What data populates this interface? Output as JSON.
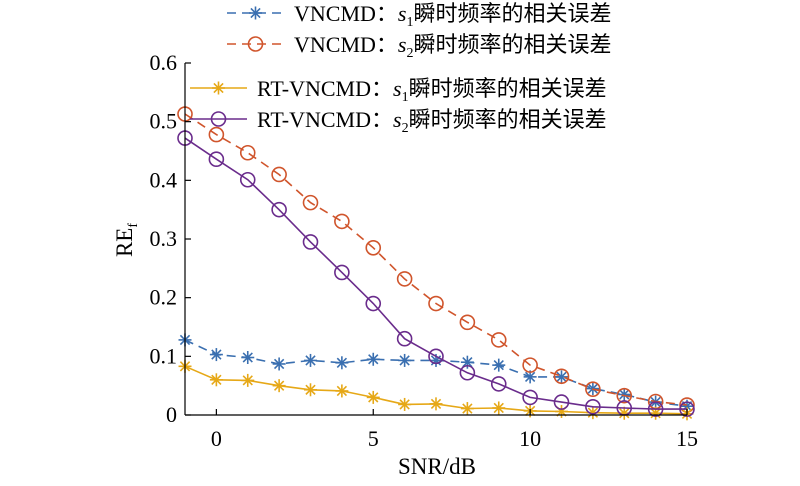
{
  "chart_data": {
    "type": "line",
    "title": "",
    "xlabel": "SNR/dB",
    "ylabel_main": "RE",
    "ylabel_sub": "f",
    "xlim": [
      -1,
      15
    ],
    "ylim": [
      0,
      0.6
    ],
    "xticks": [
      0,
      5,
      10,
      15
    ],
    "yticks": [
      0,
      0.1,
      0.2,
      0.3,
      0.4,
      0.5,
      0.6
    ],
    "ytick_labels": [
      "0",
      "0.1",
      "0.2",
      "0.3",
      "0.4",
      "0.5",
      "0.6"
    ],
    "grid": false,
    "legend_position": "top",
    "x": [
      -1,
      0,
      1,
      2,
      3,
      4,
      5,
      6,
      7,
      8,
      9,
      10,
      11,
      12,
      13,
      14,
      15
    ],
    "series": [
      {
        "name": "VNCMD：s1瞬时频率的相关误差",
        "legend_prefix": "VNCMD：",
        "legend_sym": "s",
        "legend_sub": "1",
        "legend_suffix": "瞬时频率的相关误差",
        "color": "#3a6fb0",
        "marker": "asterisk",
        "dashed": true,
        "values": [
          0.128,
          0.103,
          0.098,
          0.087,
          0.093,
          0.089,
          0.095,
          0.093,
          0.093,
          0.09,
          0.085,
          0.065,
          0.065,
          0.045,
          0.035,
          0.022,
          0.015
        ]
      },
      {
        "name": "VNCMD：s2瞬时频率的相关误差",
        "legend_prefix": "VNCMD：",
        "legend_sym": "s",
        "legend_sub": "2",
        "legend_suffix": "瞬时频率的相关误差",
        "color": "#d0552c",
        "marker": "circle",
        "dashed": true,
        "values": [
          0.513,
          0.478,
          0.447,
          0.41,
          0.362,
          0.33,
          0.285,
          0.232,
          0.19,
          0.158,
          0.128,
          0.085,
          0.066,
          0.044,
          0.033,
          0.023,
          0.017
        ]
      },
      {
        "name": "RT-VNCMD：s1瞬时频率的相关误差",
        "legend_prefix": "RT-VNCMD：",
        "legend_sym": "s",
        "legend_sub": "1",
        "legend_suffix": "瞬时频率的相关误差",
        "color": "#e6a817",
        "marker": "asterisk",
        "dashed": false,
        "values": [
          0.083,
          0.06,
          0.059,
          0.05,
          0.043,
          0.041,
          0.03,
          0.018,
          0.019,
          0.011,
          0.012,
          0.007,
          0.006,
          0.004,
          0.003,
          0.003,
          0.002
        ]
      },
      {
        "name": "RT-VNCMD：s2瞬时频率的相关误差",
        "legend_prefix": "RT-VNCMD：",
        "legend_sym": "s",
        "legend_sub": "2",
        "legend_suffix": "瞬时频率的相关误差",
        "color": "#6a2c8c",
        "marker": "circle",
        "dashed": false,
        "values": [
          0.472,
          0.436,
          0.401,
          0.35,
          0.295,
          0.243,
          0.19,
          0.13,
          0.1,
          0.072,
          0.053,
          0.03,
          0.022,
          0.014,
          0.012,
          0.01,
          0.01
        ]
      }
    ]
  }
}
